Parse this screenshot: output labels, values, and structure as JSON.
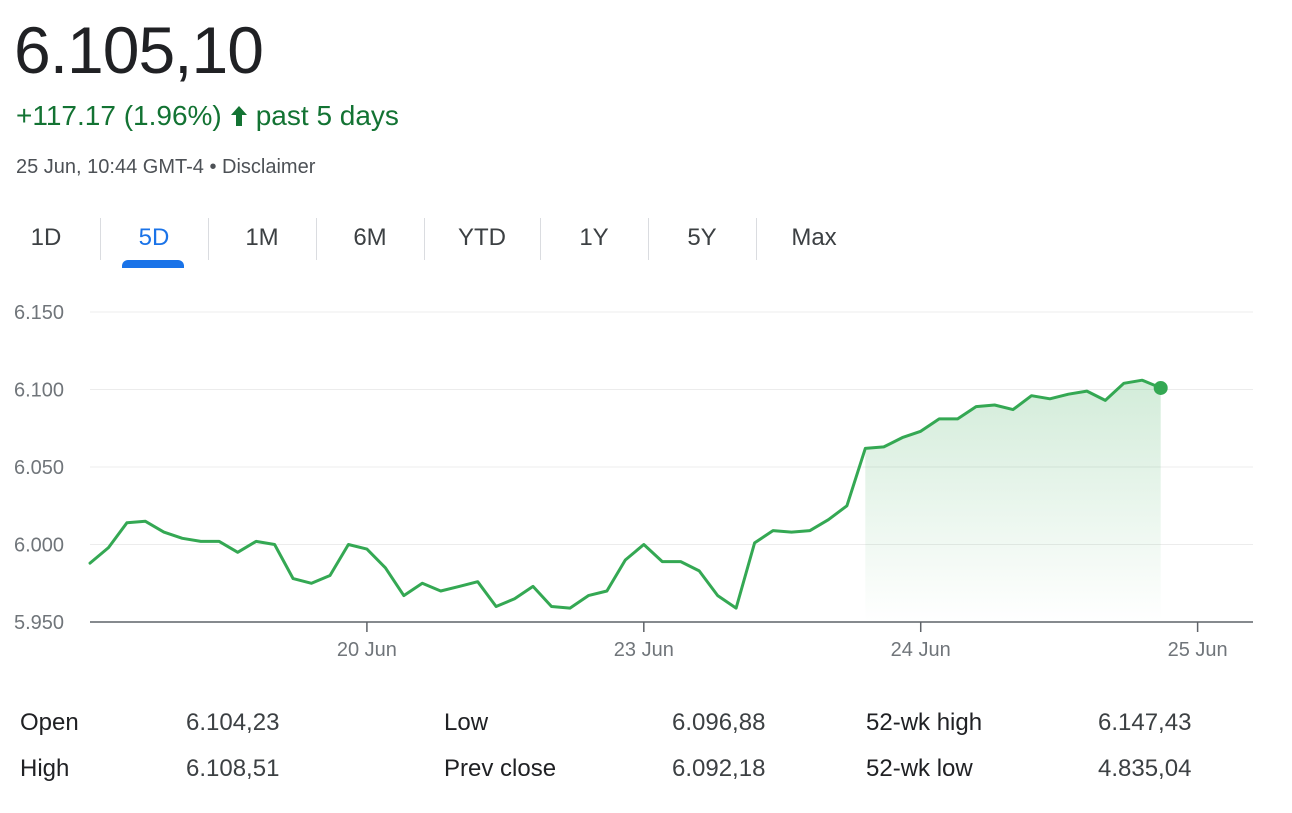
{
  "quote": {
    "price": "6.105,10",
    "change": "+117.17 (1.96%)",
    "period": "past 5 days",
    "timestamp": "25 Jun, 10:44 GMT-4",
    "separator": "•",
    "disclaimer": "Disclaimer",
    "accent_color": "#1a73e8",
    "up_color": "#137333"
  },
  "tabs": [
    {
      "label": "1D",
      "active": false
    },
    {
      "label": "5D",
      "active": true
    },
    {
      "label": "1M",
      "active": false
    },
    {
      "label": "6M",
      "active": false
    },
    {
      "label": "YTD",
      "active": false
    },
    {
      "label": "1Y",
      "active": false
    },
    {
      "label": "5Y",
      "active": false
    },
    {
      "label": "Max",
      "active": false
    }
  ],
  "chart_data": {
    "type": "area",
    "ylim": [
      5950,
      6150
    ],
    "y_ticks": [
      5950,
      6000,
      6050,
      6100,
      6150
    ],
    "y_tick_labels": [
      "5.950",
      "6.000",
      "6.050",
      "6.100",
      "6.150"
    ],
    "x_ticks": [
      {
        "label": "20 Jun",
        "index": 15
      },
      {
        "label": "23 Jun",
        "index": 30
      },
      {
        "label": "24 Jun",
        "index": 45
      },
      {
        "label": "25 Jun",
        "index": 60
      }
    ],
    "x_max_index": 63,
    "grid": true,
    "line_color": "#34a853",
    "series": [
      {
        "values": [
          5988,
          5998,
          6014,
          6015,
          6008,
          6004,
          6002,
          6002,
          5995,
          6002,
          6000,
          5978,
          5975,
          5980,
          6000,
          5997,
          5985,
          5967,
          5975,
          5970,
          5973,
          5976,
          5960,
          5965,
          5973,
          5960,
          5959,
          5967,
          5970,
          5990,
          6000,
          5989,
          5989,
          5983,
          5967,
          5959,
          6001,
          6009,
          6008,
          6009,
          6016,
          6025,
          6062,
          6063,
          6069,
          6073,
          6081,
          6081,
          6089,
          6090,
          6087,
          6096,
          6094,
          6097,
          6099,
          6093,
          6104,
          6106,
          6101
        ]
      }
    ]
  },
  "stats": {
    "rows": [
      [
        {
          "label": "Open",
          "value": "6.104,23"
        },
        {
          "label": "Low",
          "value": "6.096,88"
        },
        {
          "label": "52-wk high",
          "value": "6.147,43"
        }
      ],
      [
        {
          "label": "High",
          "value": "6.108,51"
        },
        {
          "label": "Prev close",
          "value": "6.092,18"
        },
        {
          "label": "52-wk low",
          "value": "4.835,04"
        }
      ]
    ]
  }
}
